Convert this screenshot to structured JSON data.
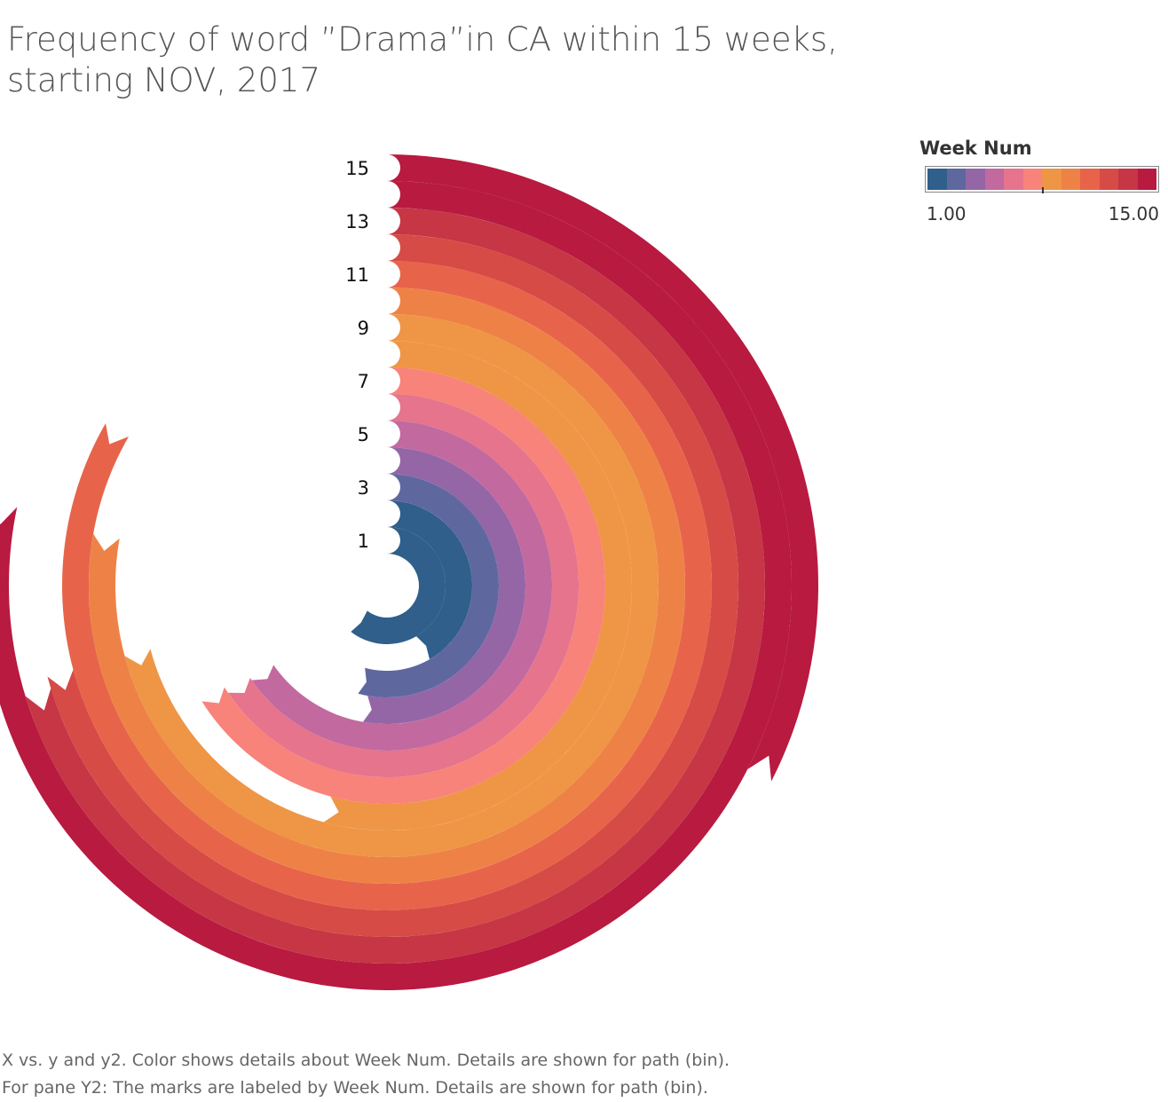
{
  "title": {
    "line1": "Frequency of word ”Drama”in CA within 15 weeks,",
    "line2": "starting NOV, 2017"
  },
  "legend": {
    "title": "Week Num",
    "min_label": "1.00",
    "max_label": "15.00",
    "colors": [
      "#2f5f8a",
      "#5f679f",
      "#9466a6",
      "#c2699f",
      "#e5748c",
      "#f8837a",
      "#ee9646",
      "#ee8246",
      "#e7644b",
      "#d64b46",
      "#c63645",
      "#b81a40"
    ]
  },
  "caption": {
    "line1": "X vs. y and y2.  Color shows details about Week Num.  Details are shown for path (bin).",
    "line2": "For pane Y2:  The marks are labeled by Week Num.  Details are shown for path (bin)."
  },
  "chart_data": {
    "type": "radial-bar",
    "title": "Frequency of word ”Drama”in CA within 15 weeks, starting NOV, 2017",
    "color_field": "Week Num",
    "weeks": [
      1,
      2,
      3,
      4,
      5,
      6,
      7,
      8,
      9,
      10,
      11,
      12,
      13,
      14,
      15
    ],
    "week_labels": [
      "1",
      "3",
      "5",
      "7",
      "9",
      "11",
      "13",
      "15"
    ],
    "labeled_weeks": [
      1,
      3,
      5,
      7,
      9,
      11,
      13,
      15
    ],
    "sweep_degrees": [
      218,
      150,
      195,
      190,
      235,
      236,
      238,
      195,
      255,
      280,
      300,
      255,
      253,
      282,
      117
    ],
    "colors": [
      "#2f5f8a",
      "#2f5f8a",
      "#5f679f",
      "#9466a6",
      "#c2699f",
      "#e5748c",
      "#f8837a",
      "#ee9646",
      "#ee9646",
      "#ee8246",
      "#e7644b",
      "#d64b46",
      "#c63645",
      "#b81a40",
      "#b81a40"
    ]
  }
}
